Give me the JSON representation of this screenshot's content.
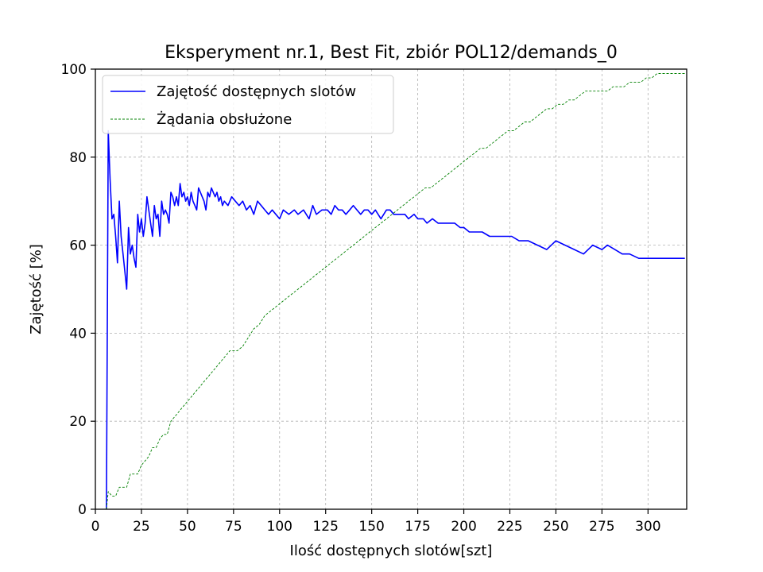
{
  "chart_data": {
    "type": "line",
    "title": "Eksperyment nr.1, Best Fit, zbiór POL12/demands_0",
    "xlabel": "Ilość dostępnych slotów[szt]",
    "ylabel": "Zajętość [%]",
    "xlim": [
      0,
      321
    ],
    "ylim": [
      0,
      100
    ],
    "xticks": [
      0,
      25,
      50,
      75,
      100,
      125,
      150,
      175,
      200,
      225,
      250,
      275,
      300
    ],
    "yticks": [
      0,
      20,
      40,
      60,
      80,
      100
    ],
    "grid": true,
    "legend_position": "upper-left",
    "series": [
      {
        "name": "Zajętość dostępnych slotów",
        "color": "#0000ff",
        "style": "solid",
        "x": [
          6,
          7,
          8,
          9,
          10,
          11,
          12,
          13,
          14,
          15,
          16,
          17,
          18,
          19,
          20,
          21,
          22,
          23,
          24,
          25,
          26,
          27,
          28,
          29,
          30,
          31,
          32,
          33,
          34,
          35,
          36,
          37,
          38,
          39,
          40,
          41,
          42,
          43,
          44,
          45,
          46,
          47,
          48,
          49,
          50,
          51,
          52,
          53,
          54,
          55,
          56,
          57,
          58,
          59,
          60,
          61,
          62,
          63,
          64,
          65,
          66,
          67,
          68,
          69,
          70,
          72,
          74,
          76,
          78,
          80,
          82,
          84,
          86,
          88,
          90,
          92,
          94,
          96,
          98,
          100,
          102,
          105,
          108,
          110,
          113,
          116,
          118,
          120,
          123,
          126,
          128,
          130,
          132,
          134,
          136,
          138,
          140,
          142,
          144,
          146,
          148,
          150,
          152,
          155,
          158,
          160,
          162,
          165,
          168,
          170,
          173,
          175,
          178,
          180,
          183,
          186,
          189,
          192,
          195,
          198,
          200,
          203,
          206,
          210,
          214,
          218,
          222,
          226,
          230,
          235,
          240,
          245,
          250,
          255,
          260,
          265,
          270,
          275,
          278,
          282,
          286,
          288,
          290,
          295,
          300,
          305,
          310,
          315,
          320
        ],
        "values": [
          0,
          86,
          75,
          66,
          67,
          62,
          56,
          70,
          62,
          58,
          54,
          50,
          64,
          58,
          60,
          57,
          55,
          67,
          63,
          66,
          62,
          65,
          71,
          68,
          65,
          62,
          69,
          66,
          67,
          62,
          70,
          67,
          68,
          67,
          65,
          72,
          71,
          69,
          71,
          69,
          74,
          71,
          72,
          70,
          71,
          69,
          72,
          70,
          69,
          68,
          73,
          72,
          71,
          70,
          68,
          72,
          71,
          73,
          72,
          71,
          72,
          70,
          71,
          69,
          70,
          69,
          71,
          70,
          69,
          70,
          68,
          69,
          67,
          70,
          69,
          68,
          67,
          68,
          67,
          66,
          68,
          67,
          68,
          67,
          68,
          66,
          69,
          67,
          68,
          68,
          67,
          69,
          68,
          68,
          67,
          68,
          69,
          68,
          67,
          68,
          68,
          67,
          68,
          66,
          68,
          68,
          67,
          67,
          67,
          66,
          67,
          66,
          66,
          65,
          66,
          65,
          65,
          65,
          65,
          64,
          64,
          63,
          63,
          63,
          62,
          62,
          62,
          62,
          61,
          61,
          60,
          59,
          61,
          60,
          59,
          58,
          60,
          59,
          60,
          59,
          58,
          58,
          58,
          57,
          57,
          57,
          57,
          57,
          57
        ]
      },
      {
        "name": "Żądania obsłużone",
        "color": "#008000",
        "style": "dashed",
        "x": [
          6,
          7,
          9,
          11,
          13,
          15,
          17,
          19,
          21,
          23,
          25,
          27,
          29,
          31,
          33,
          35,
          37,
          39,
          41,
          43,
          45,
          47,
          49,
          51,
          53,
          55,
          57,
          59,
          61,
          63,
          65,
          67,
          69,
          71,
          73,
          75,
          77,
          80,
          83,
          86,
          89,
          92,
          95,
          98,
          101,
          104,
          107,
          110,
          113,
          116,
          119,
          122,
          125,
          128,
          131,
          134,
          137,
          140,
          143,
          146,
          149,
          152,
          155,
          158,
          161,
          164,
          167,
          170,
          173,
          176,
          179,
          182,
          185,
          188,
          191,
          194,
          197,
          200,
          203,
          206,
          209,
          212,
          215,
          218,
          221,
          224,
          227,
          230,
          233,
          236,
          239,
          242,
          245,
          248,
          251,
          254,
          257,
          260,
          263,
          266,
          269,
          272,
          275,
          278,
          281,
          284,
          287,
          290,
          293,
          296,
          299,
          302,
          305,
          308,
          311,
          314,
          317,
          320
        ],
        "values": [
          0,
          4,
          3,
          3,
          5,
          5,
          5,
          8,
          8,
          8,
          10,
          11,
          12,
          14,
          14,
          16,
          17,
          17,
          20,
          21,
          22,
          23,
          24,
          25,
          26,
          27,
          28,
          29,
          30,
          31,
          32,
          33,
          34,
          35,
          36,
          36,
          36,
          37,
          39,
          41,
          42,
          44,
          45,
          46,
          47,
          48,
          49,
          50,
          51,
          52,
          53,
          54,
          55,
          56,
          57,
          58,
          59,
          60,
          61,
          62,
          63,
          64,
          65,
          66,
          67,
          68,
          69,
          70,
          71,
          72,
          73,
          73,
          74,
          75,
          76,
          77,
          78,
          79,
          80,
          81,
          82,
          82,
          83,
          84,
          85,
          86,
          86,
          87,
          88,
          88,
          89,
          90,
          91,
          91,
          92,
          92,
          93,
          93,
          94,
          95,
          95,
          95,
          95,
          95,
          96,
          96,
          96,
          97,
          97,
          97,
          98,
          98,
          99,
          99,
          99,
          99,
          99,
          99
        ]
      }
    ]
  }
}
